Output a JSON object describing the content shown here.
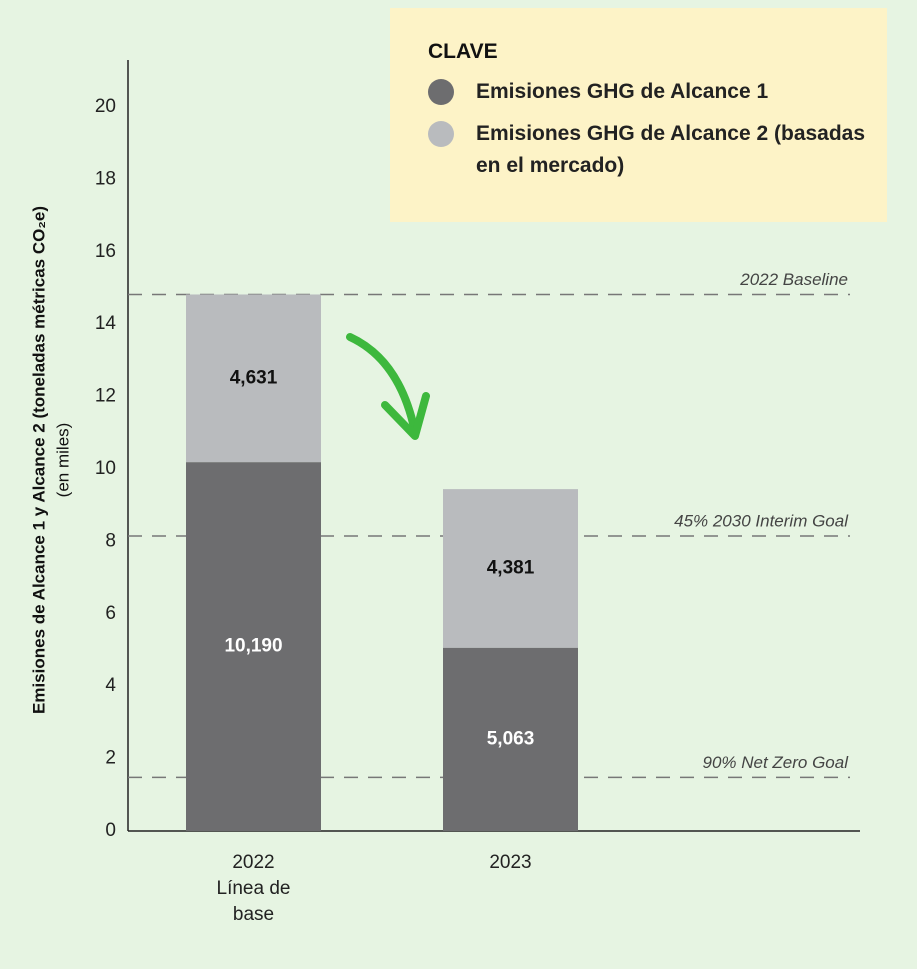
{
  "chart_data": {
    "type": "stacked_bar",
    "y_axis_title": "Emisiones de Alcance 1 y Alcance 2 (toneladas métricas CO₂e)",
    "y_axis_subtitle": "(en miles)",
    "legend_title": "CLAVE",
    "categories": [
      "2022 Línea de base",
      "2023"
    ],
    "series": [
      {
        "name": "Emisiones GHG de Alcance 1",
        "color": "#6d6d6f",
        "values": [
          10.19,
          5.063
        ],
        "value_labels": [
          "10,190",
          "5,063"
        ],
        "label_color": "#ffffff"
      },
      {
        "name": "Emisiones GHG de Alcance 2 (basadas en el mercado)",
        "color": "#b9bbbe",
        "values": [
          4.631,
          4.381
        ],
        "value_labels": [
          "4,631",
          "4,381"
        ],
        "label_color": "#111111"
      }
    ],
    "reference_lines": [
      {
        "value": 14.82,
        "label": "2022 Baseline"
      },
      {
        "value": 8.15,
        "label": "45% 2030 Interim Goal"
      },
      {
        "value": 1.48,
        "label": "90% Net Zero Goal"
      }
    ],
    "ylim": [
      0,
      20
    ],
    "yticks": [
      0,
      2,
      4,
      6,
      8,
      10,
      12,
      14,
      16,
      18,
      20
    ]
  }
}
